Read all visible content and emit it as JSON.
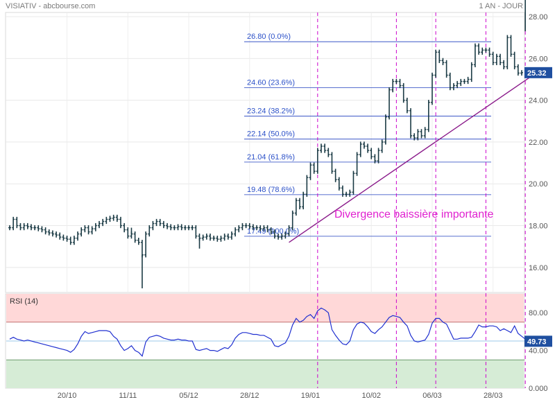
{
  "header": {
    "title": "VISIATIV - abcbourse.com",
    "period": "1 AN - JOUR"
  },
  "colors": {
    "price": "#1a3a44",
    "fib_lines": "#1f3fbf",
    "fib_labels": "#2b50c8",
    "vertical_markers": "#cc00cc",
    "trendline": "#8a1a8a",
    "annotation": "#e020d0",
    "rsi_line": "#1f2fd0",
    "rsi_overbought_zone": "#ffd8d8",
    "rsi_oversold_zone": "#d6ecd6",
    "last_value_badge": "#1f4fa0"
  },
  "annotation": "Divergence baissière importante",
  "chart_data": [
    {
      "type": "line",
      "title": "VISIATIV",
      "x_tick_labels": [
        "20/10",
        "11/11",
        "05/12",
        "28/12",
        "19/01",
        "10/02",
        "06/03",
        "28/03"
      ],
      "y_ticks": [
        "16.00",
        "18.00",
        "20.00",
        "22.00",
        "24.00",
        "26.00",
        "28.00"
      ],
      "ylim": [
        14.8,
        28.2
      ],
      "last_value": "25.32",
      "close": [
        17.9,
        18.3,
        18.0,
        17.9,
        18.0,
        17.95,
        17.9,
        17.9,
        17.85,
        17.8,
        17.7,
        17.65,
        17.6,
        17.55,
        17.45,
        17.4,
        17.35,
        17.2,
        17.4,
        17.6,
        17.8,
        17.9,
        17.7,
        17.85,
        18.0,
        18.1,
        18.2,
        18.3,
        18.35,
        18.4,
        18.3,
        18.0,
        17.8,
        17.5,
        17.6,
        17.3,
        17.2,
        16.6,
        17.6,
        17.9,
        18.1,
        18.2,
        18.1,
        18.0,
        17.95,
        17.9,
        17.9,
        17.95,
        17.9,
        17.9,
        17.9,
        17.9,
        17.5,
        17.4,
        17.45,
        17.5,
        17.4,
        17.4,
        17.35,
        17.4,
        17.5,
        17.45,
        17.6,
        17.8,
        17.9,
        18.0,
        18.0,
        17.95,
        17.9,
        17.9,
        17.85,
        17.9,
        17.8,
        17.7,
        17.5,
        17.45,
        17.5,
        17.6,
        17.9,
        18.6,
        19.2,
        18.9,
        19.5,
        20.3,
        20.9,
        20.6,
        21.6,
        21.8,
        21.6,
        21.4,
        20.6,
        20.2,
        19.8,
        19.5,
        19.5,
        19.6,
        20.5,
        21.4,
        21.9,
        21.8,
        21.6,
        21.3,
        21.1,
        21.6,
        22.0,
        23.2,
        24.5,
        24.9,
        24.9,
        24.7,
        24.0,
        23.5,
        22.3,
        22.2,
        22.5,
        22.3,
        22.6,
        23.9,
        25.2,
        26.3,
        25.9,
        25.8,
        25.2,
        24.6,
        24.7,
        24.8,
        24.9,
        24.9,
        25.0,
        25.7,
        26.6,
        26.3,
        26.4,
        26.4,
        26.2,
        25.8,
        26.1,
        25.8,
        25.6,
        27.0,
        26.2,
        25.6,
        25.3,
        25.32
      ]
    },
    {
      "type": "line",
      "title": "RSI (14)",
      "y_ticks": [
        "0.000",
        "40.00",
        "80.00"
      ],
      "ylim": [
        0,
        100
      ],
      "overbought": 70,
      "oversold": 30,
      "last_value": "49.73",
      "values": [
        52,
        54,
        52,
        51,
        50,
        51,
        50,
        49,
        48,
        47,
        46,
        45,
        44,
        43,
        42,
        41,
        40,
        38,
        41,
        47,
        55,
        60,
        58,
        59,
        60,
        61,
        61,
        61,
        60,
        55,
        52,
        45,
        40,
        42,
        45,
        40,
        38,
        34,
        49,
        54,
        55,
        56,
        55,
        53,
        52,
        51,
        51,
        52,
        51,
        51,
        50,
        50,
        41,
        40,
        41,
        42,
        40,
        40,
        39,
        41,
        43,
        42,
        46,
        53,
        57,
        59,
        59,
        58,
        57,
        57,
        56,
        56,
        54,
        52,
        45,
        44,
        46,
        48,
        55,
        67,
        74,
        70,
        72,
        76,
        78,
        74,
        82,
        85,
        83,
        80,
        62,
        56,
        51,
        47,
        46,
        50,
        62,
        68,
        70,
        69,
        65,
        60,
        58,
        62,
        65,
        70,
        75,
        77,
        76,
        75,
        70,
        66,
        56,
        50,
        49,
        50,
        51,
        57,
        69,
        74,
        74,
        70,
        68,
        60,
        52,
        52,
        53,
        53,
        53,
        54,
        60,
        67,
        65,
        65,
        66,
        66,
        65,
        61,
        63,
        61,
        59,
        66,
        58,
        55,
        52,
        49.73
      ]
    }
  ],
  "fibonacci_levels": [
    {
      "label": "26.80  (0.0%)",
      "value": 26.8
    },
    {
      "label": "24.60  (23.6%)",
      "value": 24.6
    },
    {
      "label": "23.24  (38.2%)",
      "value": 23.24
    },
    {
      "label": "22.14  (50.0%)",
      "value": 22.14
    },
    {
      "label": "21.04  (61.8%)",
      "value": 21.04
    },
    {
      "label": "19.48  (78.6%)",
      "value": 19.48
    },
    {
      "label": "17.49  (100.0%)",
      "value": 17.49
    }
  ],
  "marker_indices": [
    86,
    108,
    119,
    133,
    144
  ],
  "trendline": {
    "start": {
      "index": 78,
      "value": 17.2
    },
    "end": {
      "index": 147,
      "value": 25.3
    }
  }
}
